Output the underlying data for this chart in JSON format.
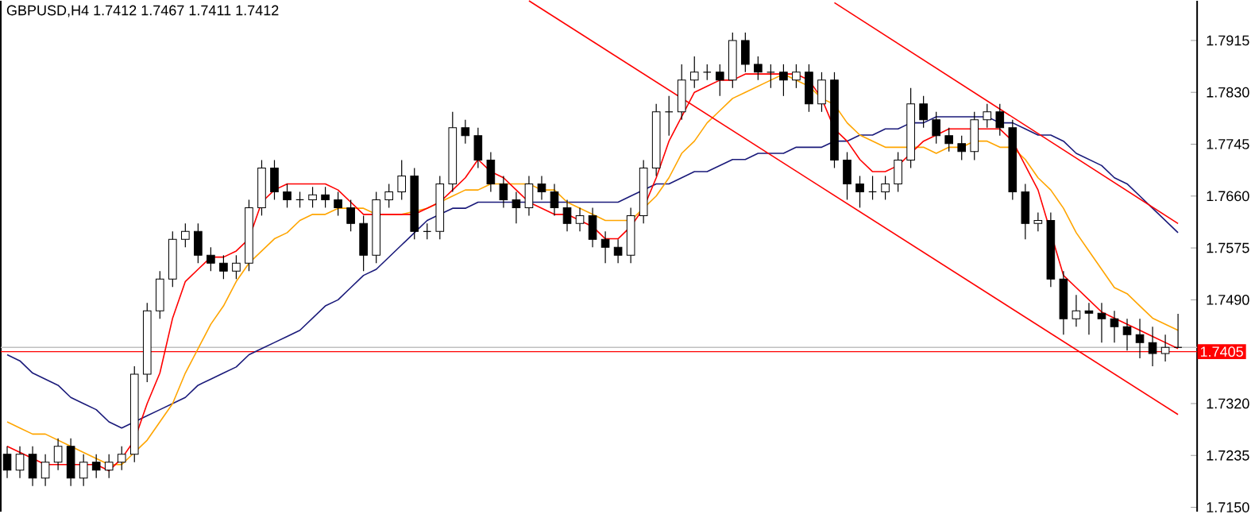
{
  "chart_data": {
    "type": "candlestick",
    "title": "GBPUSD,H4  1.7412 1.7467 1.7411 1.7412",
    "categories": [
      null,
      null,
      null,
      null,
      null,
      null,
      null,
      null,
      null,
      null,
      null,
      null,
      null,
      null,
      null,
      null,
      null,
      null,
      null,
      null,
      null,
      null,
      null,
      null,
      null,
      null,
      null,
      null,
      null,
      null,
      null,
      null,
      null,
      null,
      null,
      null,
      null,
      null,
      null,
      null,
      null,
      null,
      null,
      null,
      null,
      null,
      null,
      null,
      null,
      null,
      null,
      null,
      null,
      null,
      null,
      null,
      null,
      null,
      null,
      null,
      null,
      null,
      null,
      null,
      null,
      null,
      null,
      null,
      null,
      null,
      null,
      null,
      null,
      null,
      null,
      null,
      null,
      null,
      null,
      null,
      null,
      null,
      null,
      null,
      null,
      null,
      null,
      null,
      null,
      null,
      null,
      null,
      null
    ],
    "ohlc": [
      [
        1.7237,
        1.725,
        1.7198,
        1.7211
      ],
      [
        1.7211,
        1.725,
        1.7198,
        1.7237
      ],
      [
        1.7237,
        1.725,
        1.7185,
        1.7198
      ],
      [
        1.7198,
        1.7237,
        1.7185,
        1.7224
      ],
      [
        1.7224,
        1.7263,
        1.7211,
        1.725
      ],
      [
        1.725,
        1.7263,
        1.7185,
        1.7198
      ],
      [
        1.7198,
        1.7237,
        1.7185,
        1.7224
      ],
      [
        1.7224,
        1.7237,
        1.7198,
        1.7211
      ],
      [
        1.7211,
        1.7237,
        1.7198,
        1.7224
      ],
      [
        1.7224,
        1.725,
        1.7211,
        1.7237
      ],
      [
        1.7237,
        1.7381,
        1.7224,
        1.7368
      ],
      [
        1.7368,
        1.7485,
        1.7355,
        1.7472
      ],
      [
        1.7472,
        1.7537,
        1.7459,
        1.7524
      ],
      [
        1.7524,
        1.7602,
        1.7511,
        1.7589
      ],
      [
        1.7589,
        1.7615,
        1.7576,
        1.7602
      ],
      [
        1.7602,
        1.7615,
        1.755,
        1.7563
      ],
      [
        1.7563,
        1.7576,
        1.7537,
        1.755
      ],
      [
        1.755,
        1.7563,
        1.7524,
        1.7537
      ],
      [
        1.7537,
        1.7563,
        1.7524,
        1.755
      ],
      [
        1.755,
        1.7654,
        1.7537,
        1.7641
      ],
      [
        1.7641,
        1.7719,
        1.7628,
        1.7706
      ],
      [
        1.7706,
        1.7719,
        1.7654,
        1.7667
      ],
      [
        1.7667,
        1.768,
        1.7641,
        1.7654
      ],
      [
        1.7654,
        1.7667,
        1.7641,
        1.7654
      ],
      [
        1.7654,
        1.7675,
        1.7641,
        1.7662
      ],
      [
        1.7662,
        1.7675,
        1.7641,
        1.7654
      ],
      [
        1.7654,
        1.7667,
        1.7628,
        1.7641
      ],
      [
        1.7641,
        1.7654,
        1.7602,
        1.7615
      ],
      [
        1.7615,
        1.7628,
        1.7537,
        1.7563
      ],
      [
        1.7563,
        1.7667,
        1.755,
        1.7654
      ],
      [
        1.7654,
        1.768,
        1.7641,
        1.7667
      ],
      [
        1.7667,
        1.7719,
        1.7654,
        1.7693
      ],
      [
        1.7693,
        1.7706,
        1.7589,
        1.7602
      ],
      [
        1.7602,
        1.7615,
        1.7589,
        1.7602
      ],
      [
        1.7602,
        1.7693,
        1.7589,
        1.768
      ],
      [
        1.768,
        1.7798,
        1.7667,
        1.7772
      ],
      [
        1.7772,
        1.7785,
        1.7746,
        1.7759
      ],
      [
        1.7759,
        1.7772,
        1.7706,
        1.7719
      ],
      [
        1.7719,
        1.7732,
        1.7667,
        1.768
      ],
      [
        1.768,
        1.7693,
        1.7641,
        1.7654
      ],
      [
        1.7654,
        1.7667,
        1.7615,
        1.7641
      ],
      [
        1.7641,
        1.7693,
        1.7628,
        1.768
      ],
      [
        1.768,
        1.7693,
        1.7654,
        1.7667
      ],
      [
        1.7667,
        1.768,
        1.7628,
        1.7641
      ],
      [
        1.7641,
        1.7654,
        1.7602,
        1.7615
      ],
      [
        1.7615,
        1.7641,
        1.7602,
        1.7628
      ],
      [
        1.7628,
        1.7641,
        1.7576,
        1.7589
      ],
      [
        1.7589,
        1.7602,
        1.755,
        1.7576
      ],
      [
        1.7576,
        1.7589,
        1.755,
        1.7563
      ],
      [
        1.7563,
        1.7641,
        1.755,
        1.7628
      ],
      [
        1.7628,
        1.7719,
        1.7615,
        1.7706
      ],
      [
        1.7706,
        1.7811,
        1.7693,
        1.7798
      ],
      [
        1.7798,
        1.7824,
        1.7759,
        1.7798
      ],
      [
        1.7798,
        1.7876,
        1.7785,
        1.785
      ],
      [
        1.785,
        1.7889,
        1.7837,
        1.7863
      ],
      [
        1.7863,
        1.7876,
        1.785,
        1.7863
      ],
      [
        1.7863,
        1.7876,
        1.7824,
        1.785
      ],
      [
        1.785,
        1.7928,
        1.7837,
        1.7915
      ],
      [
        1.7915,
        1.7928,
        1.7863,
        1.7876
      ],
      [
        1.7876,
        1.7889,
        1.785,
        1.7863
      ],
      [
        1.7863,
        1.7876,
        1.7837,
        1.7863
      ],
      [
        1.7863,
        1.7876,
        1.7824,
        1.785
      ],
      [
        1.785,
        1.7876,
        1.7837,
        1.7863
      ],
      [
        1.7863,
        1.7876,
        1.7798,
        1.7811
      ],
      [
        1.7811,
        1.7863,
        1.7798,
        1.785
      ],
      [
        1.785,
        1.7863,
        1.7706,
        1.7719
      ],
      [
        1.7719,
        1.7732,
        1.7654,
        1.768
      ],
      [
        1.768,
        1.7693,
        1.7641,
        1.7667
      ],
      [
        1.7667,
        1.7693,
        1.7654,
        1.7667
      ],
      [
        1.7667,
        1.7693,
        1.7654,
        1.768
      ],
      [
        1.768,
        1.7732,
        1.7667,
        1.7719
      ],
      [
        1.7719,
        1.7837,
        1.7706,
        1.7811
      ],
      [
        1.7811,
        1.7824,
        1.7772,
        1.7785
      ],
      [
        1.7785,
        1.7798,
        1.7746,
        1.7759
      ],
      [
        1.7759,
        1.7772,
        1.7733,
        1.7746
      ],
      [
        1.7746,
        1.7759,
        1.7719,
        1.7733
      ],
      [
        1.7733,
        1.7798,
        1.7719,
        1.7785
      ],
      [
        1.7785,
        1.7811,
        1.7772,
        1.7798
      ],
      [
        1.7798,
        1.7811,
        1.7759,
        1.7772
      ],
      [
        1.7772,
        1.7785,
        1.7654,
        1.7667
      ],
      [
        1.7667,
        1.768,
        1.7589,
        1.7615
      ],
      [
        1.7615,
        1.7633,
        1.7602,
        1.762
      ],
      [
        1.762,
        1.7633,
        1.7511,
        1.7524
      ],
      [
        1.7524,
        1.7537,
        1.7433,
        1.7459
      ],
      [
        1.7459,
        1.7498,
        1.7446,
        1.7472
      ],
      [
        1.7472,
        1.7485,
        1.7433,
        1.7468
      ],
      [
        1.7468,
        1.7485,
        1.742,
        1.7459
      ],
      [
        1.7459,
        1.7472,
        1.742,
        1.7446
      ],
      [
        1.7446,
        1.7459,
        1.7407,
        1.7433
      ],
      [
        1.7433,
        1.7459,
        1.7394,
        1.742
      ],
      [
        1.742,
        1.7446,
        1.7381,
        1.7402
      ],
      [
        1.7402,
        1.7433,
        1.7389,
        1.7412
      ],
      [
        1.7412,
        1.7467,
        1.7411,
        1.7412
      ]
    ],
    "series": [
      {
        "type": "line",
        "color": "#1a1a7a",
        "values": [
          1.74,
          1.739,
          1.737,
          1.736,
          1.735,
          1.733,
          1.732,
          1.731,
          1.729,
          1.728,
          1.729,
          1.73,
          1.731,
          1.732,
          1.733,
          1.735,
          1.736,
          1.737,
          1.738,
          1.74,
          1.741,
          1.742,
          1.743,
          1.744,
          1.746,
          1.748,
          1.749,
          1.751,
          1.753,
          1.754,
          1.756,
          1.758,
          1.76,
          1.762,
          1.763,
          1.764,
          1.764,
          1.765,
          1.765,
          1.765,
          1.765,
          1.765,
          1.765,
          1.765,
          1.765,
          1.765,
          1.765,
          1.765,
          1.765,
          1.766,
          1.767,
          1.768,
          1.768,
          1.769,
          1.77,
          1.77,
          1.771,
          1.772,
          1.772,
          1.773,
          1.773,
          1.773,
          1.774,
          1.774,
          1.774,
          1.775,
          1.775,
          1.776,
          1.776,
          1.777,
          1.777,
          1.778,
          1.778,
          1.779,
          1.779,
          1.779,
          1.779,
          1.779,
          1.778,
          1.778,
          1.777,
          1.776,
          1.776,
          1.775,
          1.773,
          1.772,
          1.771,
          1.769,
          1.768,
          1.766,
          1.764,
          1.762,
          1.76
        ]
      },
      {
        "type": "line",
        "color": "#ffa500",
        "values": [
          1.729,
          1.728,
          1.727,
          1.727,
          1.726,
          1.725,
          1.724,
          1.723,
          1.722,
          1.722,
          1.724,
          1.726,
          1.729,
          1.732,
          1.737,
          1.741,
          1.745,
          1.748,
          1.752,
          1.755,
          1.757,
          1.759,
          1.76,
          1.762,
          1.763,
          1.763,
          1.764,
          1.764,
          1.764,
          1.763,
          1.763,
          1.763,
          null,
          1.764,
          1.765,
          1.766,
          1.767,
          1.767,
          1.768,
          1.768,
          1.768,
          1.768,
          1.767,
          1.767,
          1.765,
          1.764,
          1.763,
          1.762,
          1.762,
          1.762,
          1.764,
          1.766,
          1.769,
          1.773,
          1.775,
          1.778,
          1.78,
          1.782,
          1.783,
          1.784,
          1.785,
          1.786,
          1.785,
          1.784,
          1.782,
          1.781,
          1.778,
          1.776,
          1.775,
          1.774,
          1.774,
          1.774,
          1.774,
          1.773,
          1.774,
          1.774,
          1.775,
          1.775,
          1.774,
          1.774,
          1.772,
          1.769,
          1.767,
          1.764,
          1.76,
          1.757,
          1.754,
          1.751,
          1.75,
          1.748,
          1.746,
          1.745,
          1.744
        ]
      },
      {
        "type": "line",
        "color": "#ff0000",
        "values": [
          1.725,
          1.724,
          1.723,
          1.722,
          1.722,
          1.722,
          1.722,
          1.722,
          1.721,
          1.723,
          1.726,
          1.732,
          1.737,
          1.746,
          1.752,
          1.754,
          1.756,
          1.756,
          1.757,
          1.759,
          1.765,
          1.767,
          1.768,
          1.768,
          1.768,
          1.768,
          1.767,
          1.765,
          1.763,
          1.763,
          1.763,
          1.763,
          1.763,
          1.764,
          1.765,
          1.767,
          1.769,
          1.772,
          1.77,
          1.769,
          1.767,
          1.765,
          1.764,
          1.763,
          1.763,
          1.762,
          1.761,
          1.759,
          1.759,
          1.761,
          1.764,
          1.769,
          1.775,
          1.779,
          1.783,
          1.784,
          1.785,
          1.785,
          1.786,
          1.786,
          1.786,
          1.786,
          1.786,
          1.785,
          1.782,
          1.777,
          1.775,
          1.772,
          1.77,
          1.77,
          1.771,
          1.773,
          1.775,
          1.776,
          1.777,
          1.777,
          1.777,
          1.777,
          1.777,
          1.775,
          1.771,
          1.767,
          null,
          1.753,
          1.751,
          1.749,
          1.747,
          1.746,
          1.745,
          1.744,
          1.743,
          1.742,
          1.741
        ]
      },
      {
        "type": "line",
        "color": "#ff0000",
        "values": [
          null,
          null,
          null,
          null,
          null,
          null,
          null,
          null,
          null,
          null,
          null,
          null,
          null,
          null,
          null,
          null,
          null,
          null,
          null,
          null,
          null,
          null,
          null,
          null,
          null,
          null,
          null,
          null,
          null,
          null,
          null,
          null,
          null,
          null,
          null,
          null,
          null,
          null,
          null,
          null,
          null,
          1.798,
          null,
          null,
          null,
          null,
          null,
          null,
          null,
          null,
          null,
          null,
          null,
          null,
          null,
          null,
          null,
          null,
          null,
          null,
          null,
          null,
          null,
          null,
          null,
          null,
          null,
          null,
          null,
          null,
          null,
          null,
          null,
          null,
          null,
          null,
          null,
          null,
          null,
          null,
          null,
          null,
          null,
          null,
          null,
          null,
          null,
          null,
          null,
          null,
          null,
          null,
          1.7302
        ]
      },
      {
        "type": "line",
        "color": "#ff0000",
        "values": [
          null,
          null,
          null,
          null,
          null,
          null,
          null,
          null,
          null,
          null,
          null,
          null,
          null,
          null,
          null,
          null,
          null,
          null,
          null,
          null,
          null,
          null,
          null,
          null,
          null,
          null,
          null,
          null,
          null,
          null,
          null,
          null,
          null,
          null,
          null,
          null,
          null,
          null,
          null,
          null,
          null,
          null,
          null,
          null,
          null,
          null,
          null,
          null,
          null,
          null,
          null,
          null,
          null,
          null,
          null,
          null,
          null,
          null,
          null,
          null,
          null,
          null,
          null,
          null,
          null,
          1.7977,
          null,
          null,
          null,
          null,
          null,
          null,
          null,
          null,
          null,
          null,
          null,
          null,
          null,
          null,
          null,
          null,
          null,
          null,
          null,
          null,
          null,
          null,
          null,
          null,
          null,
          null,
          1.7615
        ]
      }
    ],
    "ylim": [
      1.7143,
      1.798
    ],
    "yticks": [
      {
        "value": 1.7915,
        "label": "1.7915"
      },
      {
        "value": 1.783,
        "label": "1.7830"
      },
      {
        "value": 1.7745,
        "label": "1.7745"
      },
      {
        "value": 1.766,
        "label": "1.7660"
      },
      {
        "value": 1.7575,
        "label": "1.7575"
      },
      {
        "value": 1.749,
        "label": "1.7490"
      },
      {
        "value": 1.732,
        "label": "1.7320"
      },
      {
        "value": 1.7235,
        "label": "1.7235"
      },
      {
        "value": 1.715,
        "label": "1.7150"
      }
    ],
    "ref_lines": [
      {
        "axis": "y",
        "value": 1.7412,
        "color": "#c0c0c0"
      },
      {
        "axis": "y",
        "value": 1.7405,
        "label": "1.7405",
        "color": "#ff0000"
      }
    ],
    "tick_labels": "y"
  }
}
